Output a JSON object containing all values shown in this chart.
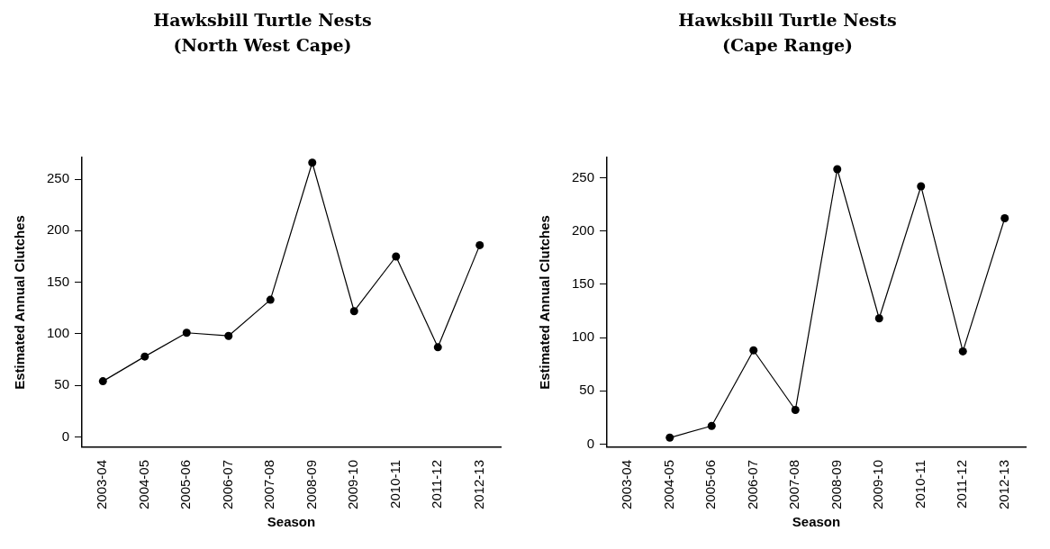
{
  "chart_data": [
    {
      "type": "line",
      "title": "Hawksbill Turtle Nests",
      "subtitle": "(North West Cape)",
      "xlabel": "Season",
      "ylabel": "Estimated Annual Clutches",
      "categories": [
        "2003-04",
        "2004-05",
        "2005-06",
        "2006-07",
        "2007-08",
        "2008-09",
        "2009-10",
        "2010-11",
        "2011-12",
        "2012-13"
      ],
      "series": [
        {
          "color": "#000000",
          "values": [
            54,
            78,
            101,
            98,
            133,
            266,
            122,
            175,
            87,
            186
          ]
        }
      ],
      "ylim": [
        -10,
        271
      ],
      "yticks": [
        0,
        50,
        100,
        150,
        200,
        250
      ],
      "marker": "circle",
      "line_style": "solid"
    },
    {
      "type": "line",
      "title": "Hawksbill Turtle Nests",
      "subtitle": "(Cape Range)",
      "xlabel": "Season",
      "ylabel": "Estimated Annual Clutches",
      "categories": [
        "2003-04",
        "2004-05",
        "2005-06",
        "2006-07",
        "2007-08",
        "2008-09",
        "2009-10",
        "2010-11",
        "2011-12",
        "2012-13"
      ],
      "series": [
        {
          "color": "#000000",
          "values": [
            null,
            6,
            17,
            88,
            32,
            258,
            118,
            242,
            87,
            212
          ]
        }
      ],
      "ylim": [
        -3,
        269
      ],
      "yticks": [
        0,
        50,
        100,
        150,
        200,
        250
      ],
      "marker": "circle",
      "line_style": "solid"
    }
  ]
}
